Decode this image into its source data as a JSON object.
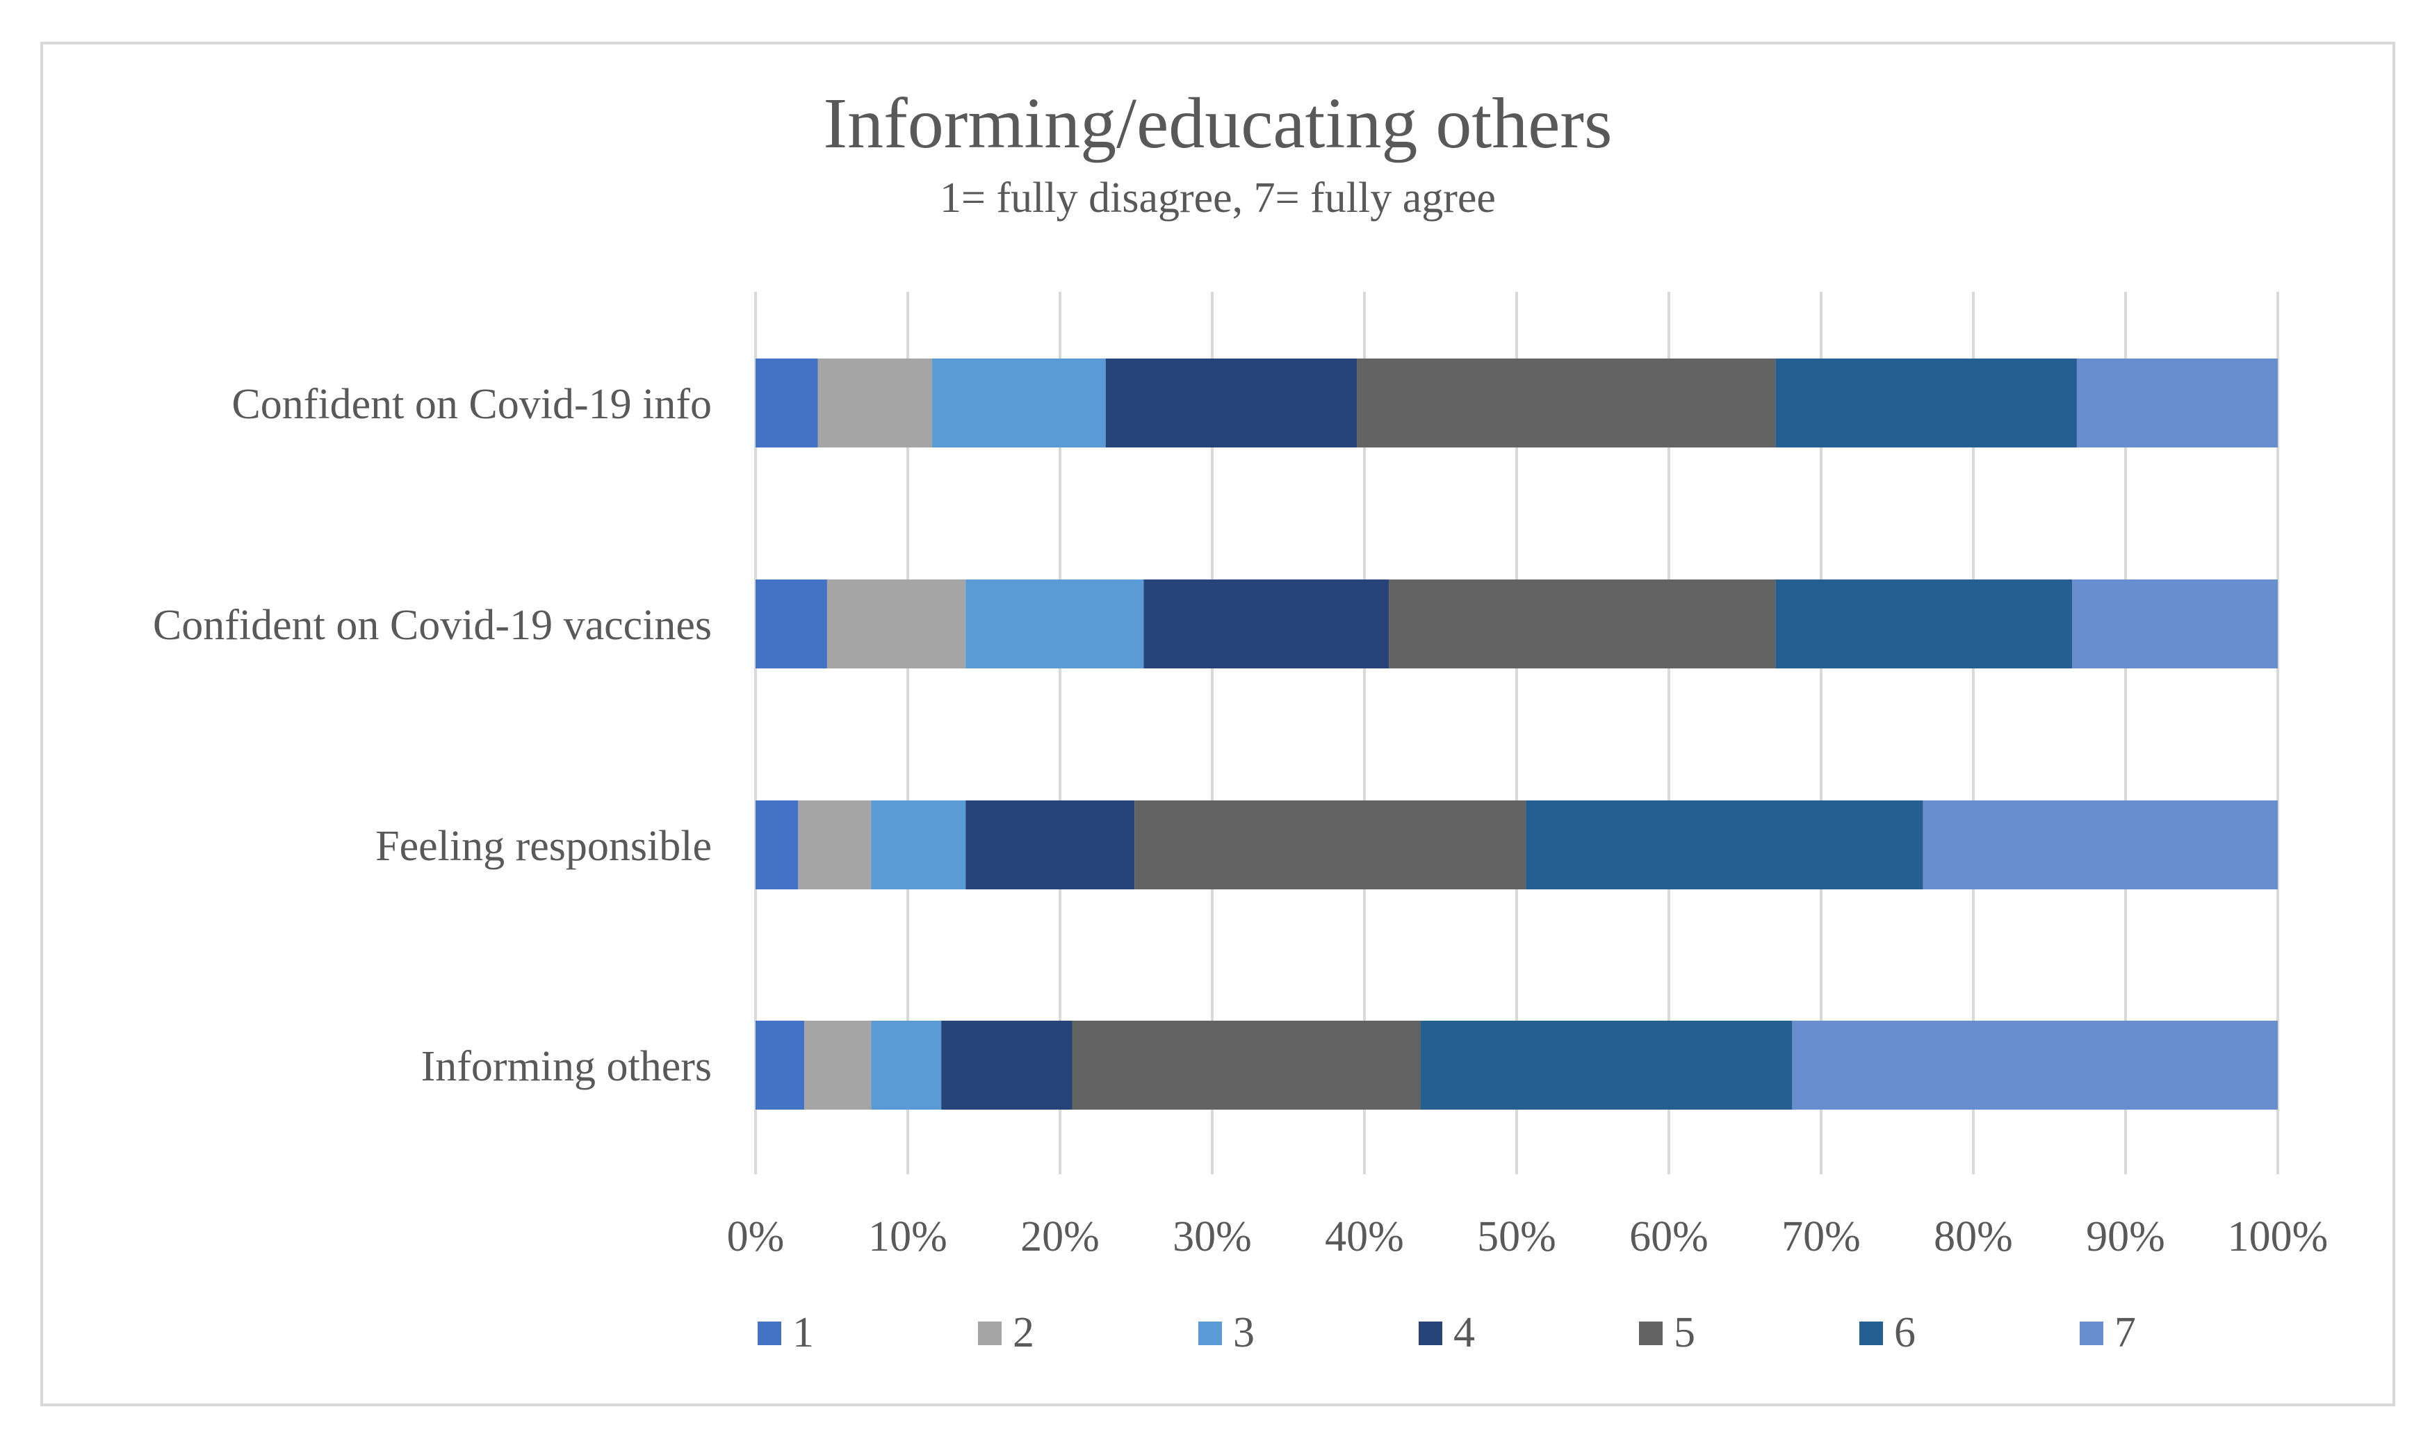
{
  "chart_data": {
    "type": "bar",
    "orientation": "horizontal",
    "stacked": "percent",
    "title": "Informing/educating others",
    "subtitle": "1= fully disagree, 7= fully agree",
    "categories": [
      "Confident on Covid-19 info",
      "Confident on Covid-19 vaccines",
      "Feeling responsible",
      "Informing others"
    ],
    "x_ticks": [
      "0%",
      "10%",
      "20%",
      "30%",
      "40%",
      "50%",
      "60%",
      "70%",
      "80%",
      "90%",
      "100%"
    ],
    "xlim": [
      0,
      100
    ],
    "grid": true,
    "legend_position": "bottom",
    "series": [
      {
        "name": "1",
        "color": "#4472c4",
        "values": [
          4.1,
          4.7,
          2.8,
          3.2
        ]
      },
      {
        "name": "2",
        "color": "#a5a5a5",
        "values": [
          7.5,
          9.1,
          4.8,
          4.4
        ]
      },
      {
        "name": "3",
        "color": "#5b9bd5",
        "values": [
          11.4,
          11.7,
          6.2,
          4.6
        ]
      },
      {
        "name": "4",
        "color": "#264478",
        "values": [
          16.5,
          16.1,
          11.1,
          8.6
        ]
      },
      {
        "name": "5",
        "color": "#636363",
        "values": [
          27.5,
          25.4,
          25.7,
          22.9
        ]
      },
      {
        "name": "6",
        "color": "#255e91",
        "values": [
          19.8,
          19.5,
          26.1,
          24.4
        ]
      },
      {
        "name": "7",
        "color": "#698ed0",
        "values": [
          13.2,
          13.5,
          23.3,
          31.9
        ]
      }
    ]
  }
}
